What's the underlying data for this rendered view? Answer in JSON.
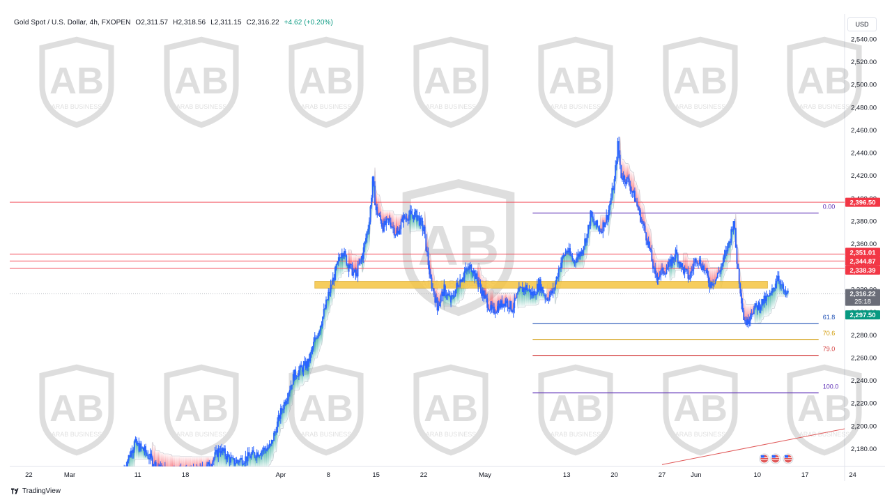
{
  "header": {
    "symbol": "Gold Spot / U.S. Dollar, 4h, FXOPEN",
    "open": "O2,311.57",
    "high": "H2,318.56",
    "low": "L2,311.15",
    "close": "C2,316.22",
    "change": "+4.62 (+0.20%)"
  },
  "currency": "USD",
  "branding": {
    "platform": "TradingView",
    "watermark": "ARAB BUSINESS"
  },
  "colors": {
    "up": "#089981",
    "down": "#f23645",
    "candle": "#2962ff",
    "zone": "#f5c542"
  },
  "chart_data": {
    "type": "candlestick",
    "title": "Gold Spot / U.S. Dollar, 4h, FXOPEN",
    "ylim": [
      2170,
      2550
    ],
    "y_ticks": [
      2180,
      2200,
      2220,
      2240,
      2260,
      2280,
      2300,
      2320,
      2340,
      2360,
      2380,
      2400,
      2420,
      2440,
      2460,
      2480,
      2500,
      2520,
      2540
    ],
    "y_tick_labels": [
      "2,180.00",
      "2,200.00",
      "2,220.00",
      "2,240.00",
      "2,260.00",
      "2,280.00",
      "2,300.00",
      "2,320.00",
      "2,340.00",
      "2,360.00",
      "2,380.00",
      "2,400.00",
      "2,420.00",
      "2,440.00",
      "2,460.00",
      "2,480.00",
      "2,500.00",
      "2,520.00",
      "2,540.00"
    ],
    "x_ticks": [
      {
        "label": "22",
        "day": -6
      },
      {
        "label": "Mar",
        "day": 0
      },
      {
        "label": "11",
        "day": 10
      },
      {
        "label": "18",
        "day": 17
      },
      {
        "label": "Apr",
        "day": 31
      },
      {
        "label": "8",
        "day": 38
      },
      {
        "label": "15",
        "day": 45
      },
      {
        "label": "22",
        "day": 52
      },
      {
        "label": "May",
        "day": 61
      },
      {
        "label": "13",
        "day": 73
      },
      {
        "label": "20",
        "day": 80
      },
      {
        "label": "27",
        "day": 87
      },
      {
        "label": "Jun",
        "day": 92
      },
      {
        "label": "10",
        "day": 101
      },
      {
        "label": "17",
        "day": 108
      },
      {
        "label": "24",
        "day": 115
      }
    ],
    "price_path": [
      [
        8,
        2163
      ],
      [
        9.5,
        2185
      ],
      [
        11,
        2178
      ],
      [
        13,
        2162
      ],
      [
        15,
        2160
      ],
      [
        17,
        2158
      ],
      [
        19,
        2160
      ],
      [
        20.5,
        2165
      ],
      [
        22,
        2180
      ],
      [
        24,
        2168
      ],
      [
        26,
        2172
      ],
      [
        28,
        2178
      ],
      [
        29.5,
        2182
      ],
      [
        31,
        2212
      ],
      [
        33,
        2245
      ],
      [
        35,
        2255
      ],
      [
        36,
        2275
      ],
      [
        37,
        2292
      ],
      [
        38,
        2315
      ],
      [
        39,
        2335
      ],
      [
        40,
        2355
      ],
      [
        41,
        2340
      ],
      [
        42,
        2332
      ],
      [
        43,
        2350
      ],
      [
        44,
        2380
      ],
      [
        44.5,
        2415
      ],
      [
        45,
        2390
      ],
      [
        46,
        2375
      ],
      [
        47,
        2380
      ],
      [
        48,
        2368
      ],
      [
        49,
        2382
      ],
      [
        50,
        2386
      ],
      [
        51,
        2385
      ],
      [
        52,
        2372
      ],
      [
        53,
        2328
      ],
      [
        54,
        2305
      ],
      [
        55,
        2320
      ],
      [
        56,
        2310
      ],
      [
        57,
        2325
      ],
      [
        58,
        2335
      ],
      [
        59,
        2340
      ],
      [
        60,
        2325
      ],
      [
        61,
        2312
      ],
      [
        62,
        2300
      ],
      [
        63,
        2305
      ],
      [
        64,
        2310
      ],
      [
        65,
        2303
      ],
      [
        66,
        2318
      ],
      [
        67,
        2322
      ],
      [
        68,
        2315
      ],
      [
        69,
        2325
      ],
      [
        70,
        2312
      ],
      [
        71,
        2318
      ],
      [
        72,
        2342
      ],
      [
        73,
        2355
      ],
      [
        74,
        2345
      ],
      [
        75,
        2352
      ],
      [
        76,
        2368
      ],
      [
        76.5,
        2385
      ],
      [
        77,
        2378
      ],
      [
        78,
        2372
      ],
      [
        79,
        2385
      ],
      [
        80,
        2415
      ],
      [
        80.5,
        2447
      ],
      [
        81,
        2420
      ],
      [
        82,
        2415
      ],
      [
        83,
        2400
      ],
      [
        84,
        2380
      ],
      [
        85,
        2360
      ],
      [
        86,
        2330
      ],
      [
        87,
        2335
      ],
      [
        88,
        2340
      ],
      [
        89,
        2352
      ],
      [
        90,
        2338
      ],
      [
        91,
        2330
      ],
      [
        92,
        2348
      ],
      [
        93,
        2340
      ],
      [
        94,
        2325
      ],
      [
        95,
        2330
      ],
      [
        96,
        2345
      ],
      [
        97,
        2365
      ],
      [
        97.5,
        2382
      ],
      [
        98,
        2345
      ],
      [
        98.5,
        2320
      ],
      [
        99,
        2295
      ],
      [
        99.5,
        2290
      ],
      [
        100,
        2300
      ],
      [
        101,
        2305
      ],
      [
        102,
        2310
      ],
      [
        103,
        2315
      ],
      [
        104,
        2333
      ],
      [
        105,
        2315
      ],
      [
        105.6,
        2316
      ]
    ],
    "horizontal_levels": [
      {
        "price": 2396.5,
        "label": "2,396.50",
        "color": "#f23645"
      },
      {
        "price": 2351.01,
        "label": "2,351.01",
        "color": "#f23645"
      },
      {
        "price": 2344.87,
        "label": "2,344.87",
        "color": "#f23645"
      },
      {
        "price": 2338.39,
        "label": "2,338.39",
        "color": "#f23645"
      }
    ],
    "current_price": {
      "price": 2316.22,
      "label": "2,316.22",
      "countdown": "25:18",
      "color": "#6a6d78"
    },
    "cloud_low": {
      "price": 2297.5,
      "label": "2,297.50",
      "color": "#089981"
    },
    "supply_zone": {
      "top": 2327,
      "bottom": 2321,
      "from_day": 36,
      "to_day": 102.5,
      "color": "#f5c542"
    },
    "fibonacci": {
      "from_day": 68,
      "to_day": 110,
      "levels": [
        {
          "label": "0.00",
          "price": 2387,
          "color": "#5b2cb5"
        },
        {
          "label": "61.8",
          "price": 2290,
          "color": "#1e4fb5"
        },
        {
          "label": "70.6",
          "price": 2276,
          "color": "#d19a05"
        },
        {
          "label": "79.0",
          "price": 2262,
          "color": "#d43e3e"
        },
        {
          "label": "100.0",
          "price": 2229,
          "color": "#5b2cb5"
        }
      ]
    },
    "trendline": {
      "from": [
        87,
        2166
      ],
      "to": [
        116,
        2200
      ],
      "color": "#e05858"
    },
    "events": [
      {
        "day": 101,
        "count": 2
      },
      {
        "day": 104.5,
        "count": 1
      }
    ]
  }
}
